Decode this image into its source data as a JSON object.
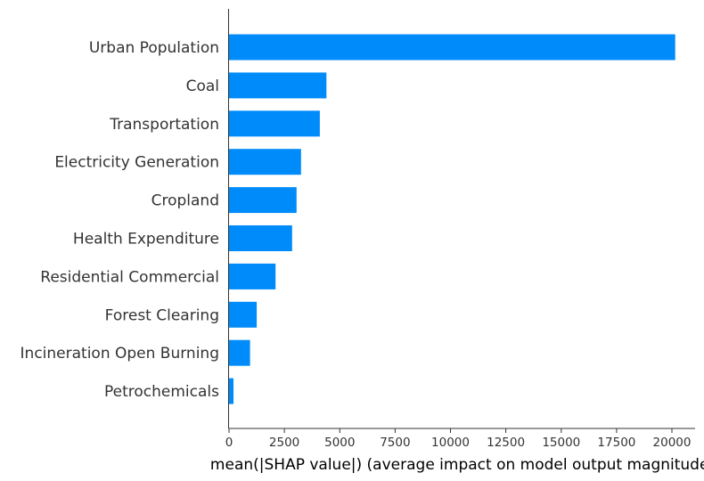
{
  "chart_data": {
    "type": "bar",
    "orientation": "horizontal",
    "categories": [
      "Urban Population",
      "Coal",
      "Transportation",
      "Electricity Generation",
      "Cropland",
      "Health Expenditure",
      "Residential Commercial",
      "Forest Clearing",
      "Incineration Open Burning",
      "Petrochemicals"
    ],
    "values": [
      20150,
      4400,
      4100,
      3250,
      3050,
      2850,
      2100,
      1250,
      950,
      200
    ],
    "xlabel": "mean(|SHAP value|) (average impact on model output magnitude)",
    "ylabel": "",
    "title": "",
    "xlim": [
      0,
      21300
    ],
    "x_ticks": [
      0,
      2500,
      5000,
      7500,
      10000,
      12500,
      15000,
      17500,
      20000
    ],
    "x_tick_labels": [
      "0",
      "2500",
      "5000",
      "7500",
      "10000",
      "12500",
      "15000",
      "17500",
      "20000"
    ],
    "grid": false,
    "legend": "none",
    "bar_color": "#008bfb",
    "text_color": "#333333",
    "axis_color": "#333333"
  }
}
